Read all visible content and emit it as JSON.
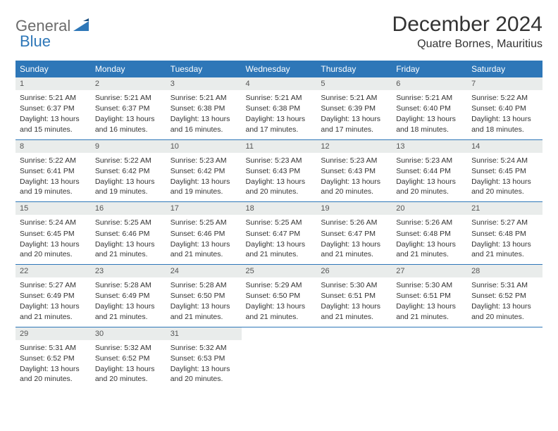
{
  "brand": {
    "part1": "General",
    "part2": "Blue"
  },
  "title": "December 2024",
  "location": "Quatre Bornes, Mauritius",
  "colors": {
    "header_bg": "#2e77b8",
    "header_text": "#ffffff",
    "daynum_bg": "#e9eceb",
    "border": "#2e77b8",
    "logo_gray": "#6b6b6b",
    "logo_blue": "#2e77b8"
  },
  "weekdays": [
    "Sunday",
    "Monday",
    "Tuesday",
    "Wednesday",
    "Thursday",
    "Friday",
    "Saturday"
  ],
  "labels": {
    "sunrise": "Sunrise:",
    "sunset": "Sunset:",
    "daylight": "Daylight:"
  },
  "days": [
    {
      "n": "1",
      "sunrise": "5:21 AM",
      "sunset": "6:37 PM",
      "daylight": "13 hours and 15 minutes."
    },
    {
      "n": "2",
      "sunrise": "5:21 AM",
      "sunset": "6:37 PM",
      "daylight": "13 hours and 16 minutes."
    },
    {
      "n": "3",
      "sunrise": "5:21 AM",
      "sunset": "6:38 PM",
      "daylight": "13 hours and 16 minutes."
    },
    {
      "n": "4",
      "sunrise": "5:21 AM",
      "sunset": "6:38 PM",
      "daylight": "13 hours and 17 minutes."
    },
    {
      "n": "5",
      "sunrise": "5:21 AM",
      "sunset": "6:39 PM",
      "daylight": "13 hours and 17 minutes."
    },
    {
      "n": "6",
      "sunrise": "5:21 AM",
      "sunset": "6:40 PM",
      "daylight": "13 hours and 18 minutes."
    },
    {
      "n": "7",
      "sunrise": "5:22 AM",
      "sunset": "6:40 PM",
      "daylight": "13 hours and 18 minutes."
    },
    {
      "n": "8",
      "sunrise": "5:22 AM",
      "sunset": "6:41 PM",
      "daylight": "13 hours and 19 minutes."
    },
    {
      "n": "9",
      "sunrise": "5:22 AM",
      "sunset": "6:42 PM",
      "daylight": "13 hours and 19 minutes."
    },
    {
      "n": "10",
      "sunrise": "5:23 AM",
      "sunset": "6:42 PM",
      "daylight": "13 hours and 19 minutes."
    },
    {
      "n": "11",
      "sunrise": "5:23 AM",
      "sunset": "6:43 PM",
      "daylight": "13 hours and 20 minutes."
    },
    {
      "n": "12",
      "sunrise": "5:23 AM",
      "sunset": "6:43 PM",
      "daylight": "13 hours and 20 minutes."
    },
    {
      "n": "13",
      "sunrise": "5:23 AM",
      "sunset": "6:44 PM",
      "daylight": "13 hours and 20 minutes."
    },
    {
      "n": "14",
      "sunrise": "5:24 AM",
      "sunset": "6:45 PM",
      "daylight": "13 hours and 20 minutes."
    },
    {
      "n": "15",
      "sunrise": "5:24 AM",
      "sunset": "6:45 PM",
      "daylight": "13 hours and 20 minutes."
    },
    {
      "n": "16",
      "sunrise": "5:25 AM",
      "sunset": "6:46 PM",
      "daylight": "13 hours and 21 minutes."
    },
    {
      "n": "17",
      "sunrise": "5:25 AM",
      "sunset": "6:46 PM",
      "daylight": "13 hours and 21 minutes."
    },
    {
      "n": "18",
      "sunrise": "5:25 AM",
      "sunset": "6:47 PM",
      "daylight": "13 hours and 21 minutes."
    },
    {
      "n": "19",
      "sunrise": "5:26 AM",
      "sunset": "6:47 PM",
      "daylight": "13 hours and 21 minutes."
    },
    {
      "n": "20",
      "sunrise": "5:26 AM",
      "sunset": "6:48 PM",
      "daylight": "13 hours and 21 minutes."
    },
    {
      "n": "21",
      "sunrise": "5:27 AM",
      "sunset": "6:48 PM",
      "daylight": "13 hours and 21 minutes."
    },
    {
      "n": "22",
      "sunrise": "5:27 AM",
      "sunset": "6:49 PM",
      "daylight": "13 hours and 21 minutes."
    },
    {
      "n": "23",
      "sunrise": "5:28 AM",
      "sunset": "6:49 PM",
      "daylight": "13 hours and 21 minutes."
    },
    {
      "n": "24",
      "sunrise": "5:28 AM",
      "sunset": "6:50 PM",
      "daylight": "13 hours and 21 minutes."
    },
    {
      "n": "25",
      "sunrise": "5:29 AM",
      "sunset": "6:50 PM",
      "daylight": "13 hours and 21 minutes."
    },
    {
      "n": "26",
      "sunrise": "5:30 AM",
      "sunset": "6:51 PM",
      "daylight": "13 hours and 21 minutes."
    },
    {
      "n": "27",
      "sunrise": "5:30 AM",
      "sunset": "6:51 PM",
      "daylight": "13 hours and 21 minutes."
    },
    {
      "n": "28",
      "sunrise": "5:31 AM",
      "sunset": "6:52 PM",
      "daylight": "13 hours and 20 minutes."
    },
    {
      "n": "29",
      "sunrise": "5:31 AM",
      "sunset": "6:52 PM",
      "daylight": "13 hours and 20 minutes."
    },
    {
      "n": "30",
      "sunrise": "5:32 AM",
      "sunset": "6:52 PM",
      "daylight": "13 hours and 20 minutes."
    },
    {
      "n": "31",
      "sunrise": "5:32 AM",
      "sunset": "6:53 PM",
      "daylight": "13 hours and 20 minutes."
    }
  ]
}
